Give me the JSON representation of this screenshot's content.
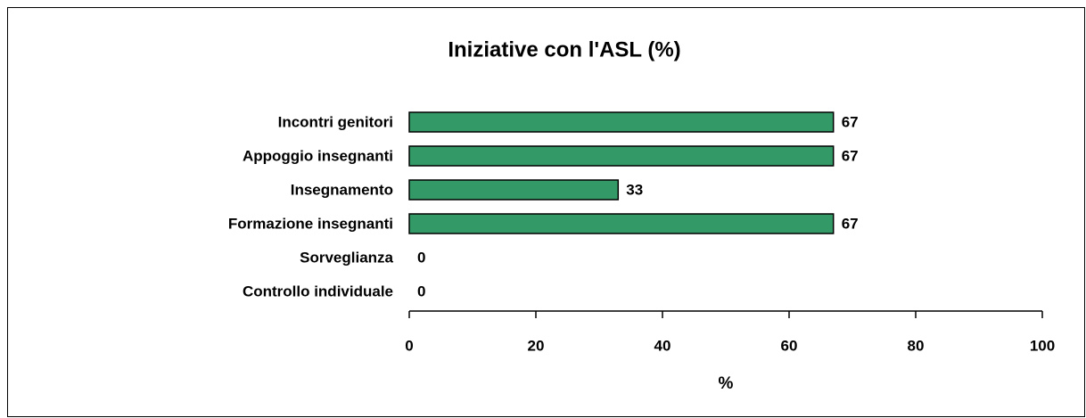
{
  "chart_data": {
    "type": "bar",
    "orientation": "horizontal",
    "title": "Iniziative con l'ASL (%)",
    "categories": [
      "Incontri genitori",
      "Appoggio insegnanti",
      "Insegnamento",
      "Formazione insegnanti",
      "Sorveglianza",
      "Controllo individuale"
    ],
    "values": [
      67,
      67,
      33,
      67,
      0,
      0
    ],
    "color": "#339966",
    "xlabel": "%",
    "xlim": [
      0,
      100
    ],
    "xticks": [
      0,
      20,
      40,
      60,
      80,
      100
    ]
  }
}
